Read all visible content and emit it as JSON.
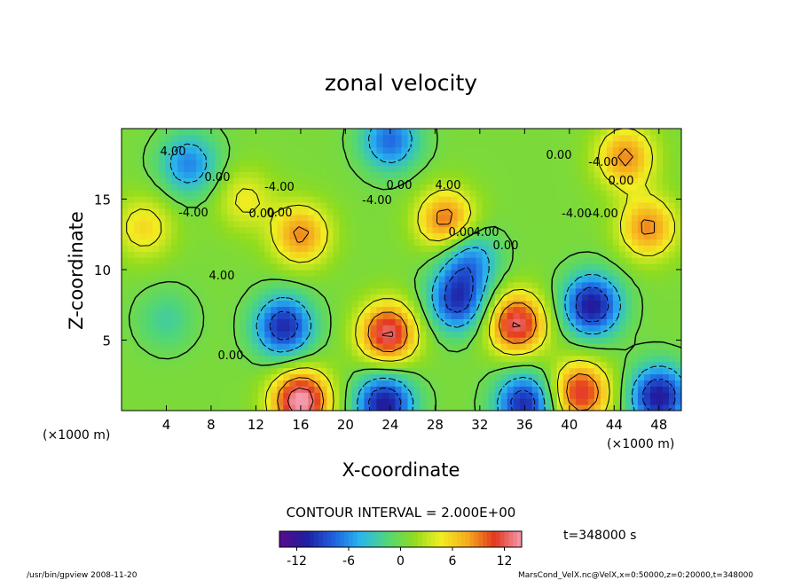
{
  "chart_data": {
    "type": "heatmap",
    "title": "zonal velocity",
    "xlabel": "X-coordinate",
    "ylabel": "Z-coordinate",
    "x_unit": "(×1000 m)",
    "y_unit": "(×1000 m)",
    "xlim": [
      0,
      50
    ],
    "ylim": [
      0,
      20
    ],
    "x_ticks": [
      4,
      8,
      12,
      16,
      20,
      24,
      28,
      32,
      36,
      40,
      44,
      48
    ],
    "y_ticks": [
      5,
      10,
      15
    ],
    "colorbar": {
      "range": [
        -14,
        14
      ],
      "ticks": [
        -12,
        -6,
        0,
        6,
        12
      ],
      "colors": [
        "#5a0a8c",
        "#1e1ea0",
        "#1f5fe0",
        "#29b6ee",
        "#4fd67a",
        "#8fdc1e",
        "#f2ee22",
        "#f6a91e",
        "#e3381e",
        "#f49ab0"
      ]
    },
    "contour_interval_text": "CONTOUR INTERVAL = 2.000E+00",
    "time_text": "t=348000 s",
    "contour_labels": [
      "4.00",
      "0.00",
      "-4.00",
      "0.00",
      "4.00",
      "-4.00",
      "0.00",
      "0.00",
      "-4.00",
      "0.00",
      "4.00",
      "0.00",
      "-4.00",
      "-4.00",
      "0.00",
      "-4.00",
      "0.00",
      "4.00",
      "0.00"
    ],
    "features": [
      {
        "x": 14.5,
        "z": 6.0,
        "value": -11
      },
      {
        "x": 23.8,
        "z": 5.5,
        "value": 12
      },
      {
        "x": 30.0,
        "z": 7.8,
        "value": -10
      },
      {
        "x": 35.3,
        "z": 6.2,
        "value": 12
      },
      {
        "x": 42.0,
        "z": 7.5,
        "value": -12
      },
      {
        "x": 16.0,
        "z": 0.7,
        "value": 14
      },
      {
        "x": 23.5,
        "z": 0.5,
        "value": -12
      },
      {
        "x": 36.0,
        "z": 0.5,
        "value": -11
      },
      {
        "x": 48.0,
        "z": 1.0,
        "value": -12
      },
      {
        "x": 41.0,
        "z": 1.3,
        "value": 11
      },
      {
        "x": 6.0,
        "z": 17.5,
        "value": -7
      },
      {
        "x": 24.0,
        "z": 19.2,
        "value": -8
      },
      {
        "x": 29.0,
        "z": 13.5,
        "value": 9
      },
      {
        "x": 16.0,
        "z": 12.5,
        "value": 8
      },
      {
        "x": 45.0,
        "z": 18.0,
        "value": 8
      },
      {
        "x": 47.0,
        "z": 13.0,
        "value": 8
      },
      {
        "x": 31.0,
        "z": 10.8,
        "value": -7
      },
      {
        "x": 2.0,
        "z": 13.0,
        "value": 5
      },
      {
        "x": 11.0,
        "z": 15.0,
        "value": 4
      },
      {
        "x": 4.0,
        "z": 6.5,
        "value": -3
      }
    ]
  },
  "footer": {
    "left_text": "/usr/bin/gpview  2008-11-20",
    "right_text": "MarsCond_VelX.nc@VelX,x=0:50000,z=0:20000,t=348000"
  }
}
